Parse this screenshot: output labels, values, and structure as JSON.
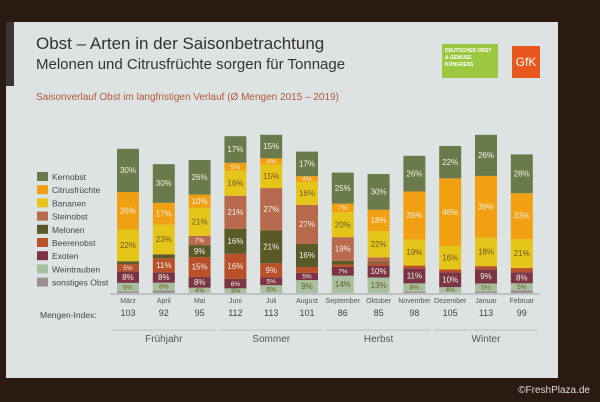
{
  "title": "Obst – Arten in der Saisonbetrachtung",
  "subtitle": "Melonen und Citrusfrüchte sorgen für Tonnage",
  "logos": {
    "left": "DEUTSCHER OBST & GEMÜSE KONGRESS",
    "right": "GfK"
  },
  "watermark": "©FreshPlaza.de",
  "chart_data": {
    "type": "bar",
    "stacked": true,
    "title": "Saisonverlauf Obst im langfristigen Verlauf (Ø Mengen 2015 – 2019)",
    "categories": [
      "März",
      "April",
      "Mai",
      "Juni",
      "Juli",
      "August",
      "September",
      "Oktober",
      "November",
      "Dezember",
      "Januar",
      "Februar"
    ],
    "index_label": "Mengen-Index:",
    "index_values": [
      103,
      92,
      95,
      112,
      113,
      101,
      86,
      85,
      98,
      105,
      113,
      99
    ],
    "seasons": [
      {
        "name": "Frühjahr",
        "months": [
          "März",
          "April",
          "Mai"
        ]
      },
      {
        "name": "Sommer",
        "months": [
          "Juni",
          "Juli",
          "August"
        ]
      },
      {
        "name": "Herbst",
        "months": [
          "September",
          "Oktober",
          "November"
        ]
      },
      {
        "name": "Winter",
        "months": [
          "Dezember",
          "Januar",
          "Februar"
        ]
      }
    ],
    "legend_placement": "left",
    "series": [
      {
        "name": "Kernobst",
        "color": "#6b7a4a",
        "values": [
          30,
          30,
          26,
          17,
          15,
          17,
          25,
          30,
          26,
          22,
          26,
          28
        ],
        "labels": [
          "30%",
          "30%",
          "26%",
          "17%",
          "15%",
          "17%",
          "25%",
          "30%",
          "26%",
          "22%",
          "26%",
          "28%"
        ]
      },
      {
        "name": "Citrusfrüchte",
        "color": "#f0a010",
        "values": [
          26,
          17,
          10,
          5,
          4,
          4,
          7,
          18,
          35,
          46,
          39,
          33
        ],
        "labels": [
          "26%",
          "17%",
          "10%",
          "5%",
          "4%",
          "4%",
          "7%",
          "18%",
          "35%",
          "46%",
          "39%",
          "33%"
        ]
      },
      {
        "name": "Bananen",
        "color": "#e6c51a",
        "values": [
          22,
          23,
          21,
          16,
          15,
          16,
          20,
          22,
          19,
          16,
          18,
          21
        ],
        "labels": [
          "22%",
          "23%",
          "21%",
          "16%",
          "15%",
          "16%",
          "20%",
          "22%",
          "19%",
          "16%",
          "18%",
          "21%"
        ]
      },
      {
        "name": "Steinobst",
        "color": "#b86a4c",
        "values": [
          0,
          0,
          7,
          21,
          27,
          27,
          19,
          4,
          0,
          0,
          0,
          0
        ],
        "labels": [
          "",
          "",
          "7%",
          "21%",
          "27%",
          "27%",
          "19%",
          "",
          "",
          "",
          "",
          ""
        ]
      },
      {
        "name": "Melonen",
        "color": "#5a5a28",
        "values": [
          2,
          3,
          9,
          16,
          21,
          16,
          3,
          1,
          0,
          0,
          0,
          0
        ],
        "labels": [
          "",
          "",
          "9%",
          "16%",
          "21%",
          "16%",
          "",
          "",
          "",
          "",
          "",
          ""
        ]
      },
      {
        "name": "Beerenobst",
        "color": "#b8502a",
        "values": [
          5,
          11,
          15,
          16,
          9,
          4,
          2,
          2,
          2,
          2,
          2,
          3
        ],
        "labels": [
          "5%",
          "11%",
          "15%",
          "16%",
          "9%",
          "",
          "",
          "",
          "",
          "",
          "",
          ""
        ]
      },
      {
        "name": "Exoten",
        "color": "#7a3444",
        "values": [
          8,
          8,
          8,
          6,
          5,
          5,
          7,
          10,
          11,
          10,
          9,
          8
        ],
        "labels": [
          "8%",
          "8%",
          "8%",
          "6%",
          "5%",
          "5%",
          "7%",
          "10%",
          "11%",
          "10%",
          "9%",
          "8%"
        ]
      },
      {
        "name": "Weintrauben",
        "color": "#a8c0a0",
        "values": [
          6,
          6,
          4,
          3,
          5,
          9,
          14,
          13,
          6,
          4,
          5,
          5
        ],
        "labels": [
          "6%",
          "6%",
          "4%",
          "3%",
          "5%",
          "9%",
          "14%",
          "13%",
          "6%",
          "4%",
          "5%",
          "5%"
        ]
      },
      {
        "name": "sonstiges Obst",
        "color": "#9a9090",
        "values": [
          1,
          2,
          0,
          0,
          0,
          0,
          0,
          0,
          1,
          0,
          1,
          2
        ],
        "labels": [
          "",
          "",
          "",
          "",
          "",
          "",
          "",
          "",
          "",
          "",
          "",
          ""
        ]
      }
    ]
  }
}
